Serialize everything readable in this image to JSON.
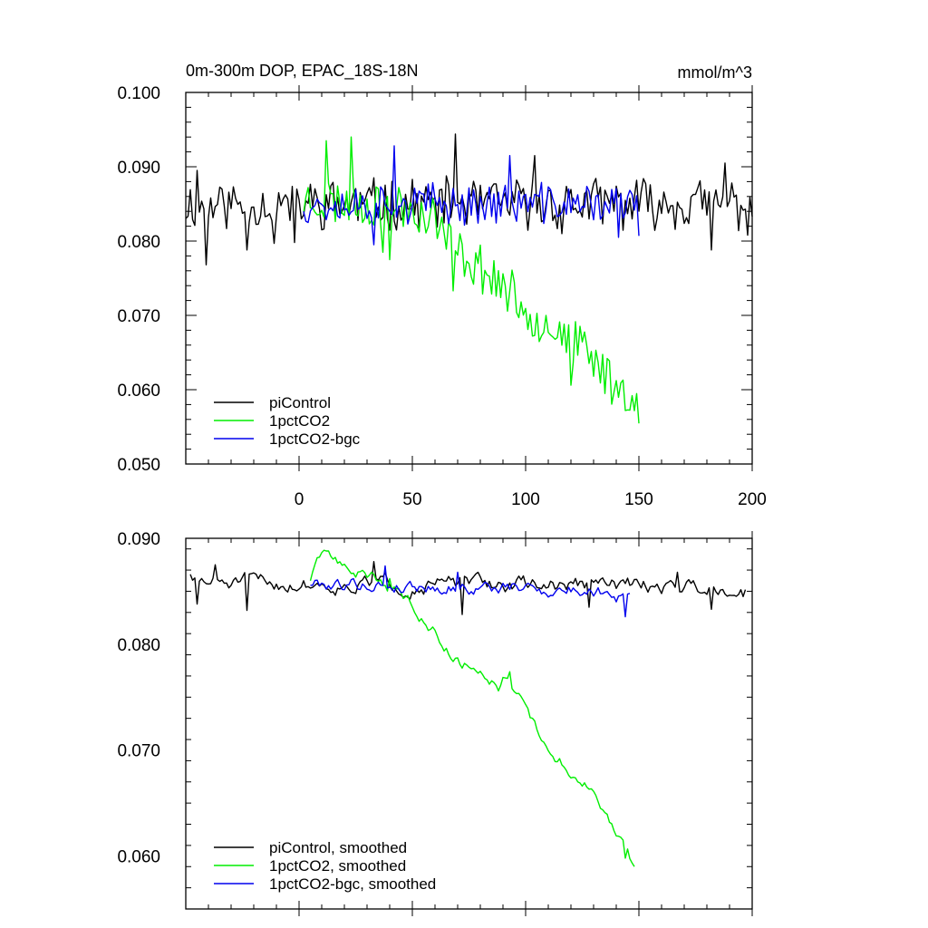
{
  "chart_data": [
    {
      "type": "line",
      "title": "0m-300m DOP, EPAC_18S-18N",
      "units": "mmol/m^3",
      "xlim": [
        -50,
        200
      ],
      "ylim": [
        0.05,
        0.1
      ],
      "xticks": [
        0,
        50,
        100,
        150,
        200
      ],
      "xtick_labels": [
        "0",
        "50",
        "100",
        "150",
        "200"
      ],
      "yticks": [
        0.05,
        0.06,
        0.07,
        0.08,
        0.09,
        0.1
      ],
      "ytick_labels": [
        "0.050",
        "0.060",
        "0.070",
        "0.080",
        "0.090",
        "0.100"
      ],
      "legend_position": "bottom-left",
      "series": [
        {
          "name": "piControl",
          "color": "#000000",
          "x_start": -50,
          "x_end": 200,
          "trend": [
            [
              -50,
              0.085
            ],
            [
              200,
              0.085
            ]
          ],
          "noise": 0.003,
          "seed": 11,
          "anchors": [
            [
              -45,
              0.0895
            ],
            [
              -41,
              0.0768
            ],
            [
              -23,
              0.0788
            ],
            [
              -11,
              0.0797
            ],
            [
              -2,
              0.0798
            ],
            [
              69,
              0.0944
            ],
            [
              104,
              0.0915
            ],
            [
              116,
              0.081
            ],
            [
              182,
              0.0788
            ],
            [
              188,
              0.0905
            ],
            [
              198,
              0.0808
            ]
          ]
        },
        {
          "name": "1pctCO2",
          "color": "#00ee00",
          "x_start": 2,
          "x_end": 150,
          "trend": [
            [
              2,
              0.0855
            ],
            [
              45,
              0.0848
            ],
            [
              60,
              0.083
            ],
            [
              70,
              0.0785
            ],
            [
              80,
              0.0765
            ],
            [
              90,
              0.074
            ],
            [
              100,
              0.0705
            ],
            [
              110,
              0.069
            ],
            [
              120,
              0.0665
            ],
            [
              130,
              0.064
            ],
            [
              140,
              0.0605
            ],
            [
              150,
              0.0585
            ]
          ],
          "noise": 0.0028,
          "seed": 23,
          "anchors": [
            [
              12,
              0.0935
            ],
            [
              23,
              0.094
            ],
            [
              37,
              0.0785
            ],
            [
              40,
              0.0775
            ],
            [
              68,
              0.0733
            ],
            [
              120,
              0.0606
            ],
            [
              144,
              0.0572
            ]
          ]
        },
        {
          "name": "1pctCO2-bgc",
          "color": "#0000ee",
          "x_start": 2,
          "x_end": 150,
          "trend": [
            [
              2,
              0.085
            ],
            [
              150,
              0.085
            ]
          ],
          "noise": 0.0024,
          "seed": 37,
          "anchors": [
            [
              42,
              0.0928
            ],
            [
              33,
              0.0795
            ],
            [
              93,
              0.0915
            ],
            [
              141,
              0.0805
            ],
            [
              150,
              0.0807
            ]
          ]
        }
      ]
    },
    {
      "type": "line",
      "title": "",
      "xlim": [
        -50,
        200
      ],
      "ylim": [
        0.055,
        0.09
      ],
      "xticks": [
        0,
        50,
        100,
        150,
        200
      ],
      "yticks": [
        0.06,
        0.07,
        0.08,
        0.09
      ],
      "ytick_labels": [
        "0.060",
        "0.070",
        "0.080",
        "0.090"
      ],
      "legend_position": "bottom-left",
      "series": [
        {
          "name": "piControl, smoothed",
          "color": "#000000",
          "x_start": -48,
          "x_end": 197,
          "trend": [
            [
              -48,
              0.0858
            ],
            [
              197,
              0.0855
            ]
          ],
          "noise": 0.0008,
          "seed": 51,
          "anchors": [
            [
              -48,
              0.0866
            ],
            [
              -45,
              0.0838
            ],
            [
              -37,
              0.0875
            ],
            [
              -23,
              0.0832
            ],
            [
              33,
              0.0878
            ],
            [
              72,
              0.0828
            ],
            [
              128,
              0.0835
            ],
            [
              167,
              0.0868
            ],
            [
              182,
              0.0833
            ],
            [
              196,
              0.0845
            ]
          ]
        },
        {
          "name": "1pctCO2, smoothed",
          "color": "#00ee00",
          "x_start": 5,
          "x_end": 148,
          "trend": [
            [
              5,
              0.0862
            ],
            [
              12,
              0.0888
            ],
            [
              20,
              0.0872
            ],
            [
              35,
              0.0862
            ],
            [
              50,
              0.0838
            ],
            [
              58,
              0.0818
            ],
            [
              65,
              0.0798
            ],
            [
              72,
              0.0782
            ],
            [
              80,
              0.0778
            ],
            [
              88,
              0.0762
            ],
            [
              92,
              0.0774
            ],
            [
              100,
              0.0738
            ],
            [
              108,
              0.0705
            ],
            [
              120,
              0.068
            ],
            [
              130,
              0.066
            ],
            [
              140,
              0.062
            ],
            [
              148,
              0.059
            ]
          ],
          "noise": 0.0006,
          "seed": 63,
          "anchors": [
            [
              12,
              0.0888
            ],
            [
              40,
              0.0862
            ],
            [
              93,
              0.0774
            ],
            [
              144,
              0.0598
            ],
            [
              148,
              0.059
            ]
          ]
        },
        {
          "name": "1pctCO2-bgc, smoothed",
          "color": "#0000ee",
          "x_start": 5,
          "x_end": 146,
          "trend": [
            [
              5,
              0.0858
            ],
            [
              146,
              0.085
            ]
          ],
          "noise": 0.0007,
          "seed": 79,
          "anchors": [
            [
              38,
              0.0874
            ],
            [
              70,
              0.0868
            ],
            [
              140,
              0.084
            ],
            [
              144,
              0.0826
            ],
            [
              146,
              0.0848
            ]
          ]
        }
      ]
    }
  ]
}
